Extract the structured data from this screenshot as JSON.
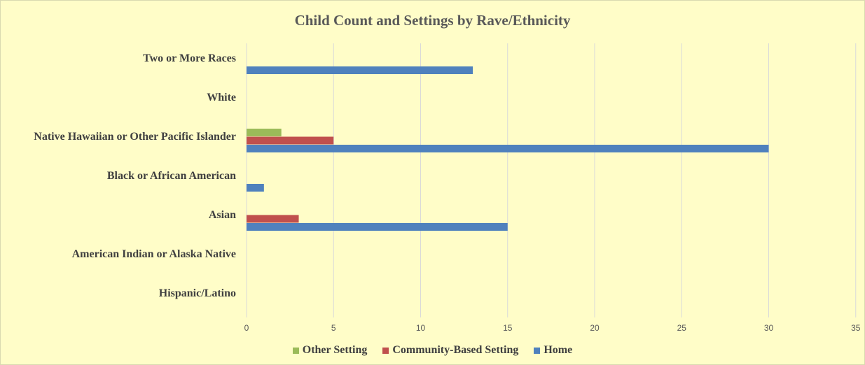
{
  "chart_data": {
    "type": "bar",
    "orientation": "horizontal",
    "title": "Child Count and Settings by Rave/Ethnicity",
    "categories": [
      "Hispanic/Latino",
      "American Indian or Alaska Native",
      "Asian",
      "Black or African American",
      "Native Hawaiian or Other Pacific Islander",
      "White",
      "Two or More Races"
    ],
    "series": [
      {
        "name": "Home",
        "color": "#4f81bd",
        "values": [
          0,
          0,
          15,
          1,
          30,
          0,
          13
        ]
      },
      {
        "name": "Community-Based Setting",
        "color": "#c0504d",
        "values": [
          0,
          0,
          3,
          0,
          5,
          0,
          0
        ]
      },
      {
        "name": "Other Setting",
        "color": "#9bbb59",
        "values": [
          0,
          0,
          0,
          0,
          2,
          0,
          0
        ]
      }
    ],
    "legend_order": [
      "Other Setting",
      "Community-Based Setting",
      "Home"
    ],
    "xlim": [
      0,
      35
    ],
    "xticks": [
      "0",
      "5",
      "10",
      "15",
      "20",
      "25",
      "30",
      "35"
    ],
    "grid": true,
    "legend_position": "bottom"
  }
}
